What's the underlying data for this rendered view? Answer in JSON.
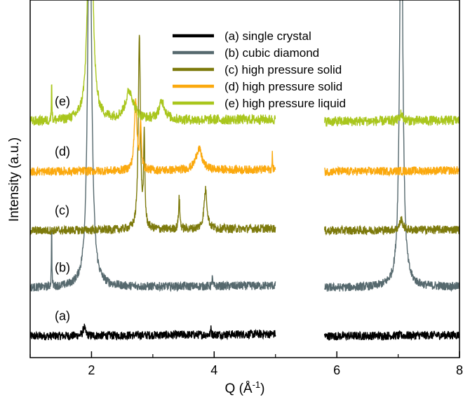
{
  "chart_data": {
    "type": "line",
    "title": "",
    "xlabel": "Q (Å",
    "xlabel_sup": "-1",
    "xlabel_close": ")",
    "ylabel": "Intensity (a.u.)",
    "xlim": [
      1,
      8
    ],
    "ylim": [
      0,
      1
    ],
    "xticks": [
      2,
      4,
      6,
      8
    ],
    "x_tick_labels": [
      "2",
      "4",
      "6",
      "8"
    ],
    "y_ticks_labeled": false,
    "grid": false,
    "legend_placement": "top-center",
    "data_gap": [
      5.0,
      5.8
    ],
    "series": [
      {
        "name": "(a) single crystal",
        "label": "(a)",
        "color": "#000000",
        "baseline": 0.06,
        "noise": 0.012,
        "peaks": [
          [
            1.88,
            0.025,
            0.02
          ],
          [
            3.95,
            0.03,
            0.004
          ]
        ]
      },
      {
        "name": "(b) cubic diamond",
        "label": "(b)",
        "color": "#56696e",
        "baseline": 0.195,
        "noise": 0.012,
        "peaks": [
          [
            1.97,
            1.2,
            0.035
          ],
          [
            7.05,
            1.2,
            0.03
          ],
          [
            1.35,
            0.2,
            0.004
          ],
          [
            3.97,
            0.04,
            0.004
          ]
        ]
      },
      {
        "name": "(c) high pressure solid",
        "label": "(c)",
        "color": "#7d7a0c",
        "baseline": 0.355,
        "noise": 0.012,
        "peaks": [
          [
            2.78,
            0.55,
            0.02
          ],
          [
            2.86,
            0.25,
            0.012
          ],
          [
            3.43,
            0.09,
            0.012
          ],
          [
            3.86,
            0.11,
            0.03
          ],
          [
            7.05,
            0.03,
            0.03
          ]
        ]
      },
      {
        "name": "(d) high pressure solid",
        "label": "(d)",
        "color": "#fba90e",
        "baseline": 0.52,
        "noise": 0.012,
        "peaks": [
          [
            2.72,
            0.2,
            0.025
          ],
          [
            2.8,
            0.12,
            0.015
          ],
          [
            3.75,
            0.06,
            0.06
          ],
          [
            4.95,
            0.05,
            0.004
          ]
        ]
      },
      {
        "name": "(e) high pressure liquid",
        "label": "(e)",
        "color": "#a9c61d",
        "baseline": 0.66,
        "noise": 0.014,
        "peaks": [
          [
            1.98,
            1.0,
            0.035
          ],
          [
            2.62,
            0.08,
            0.08
          ],
          [
            3.15,
            0.05,
            0.06
          ],
          [
            1.35,
            0.14,
            0.004
          ],
          [
            7.05,
            0.02,
            0.03
          ]
        ]
      }
    ]
  }
}
